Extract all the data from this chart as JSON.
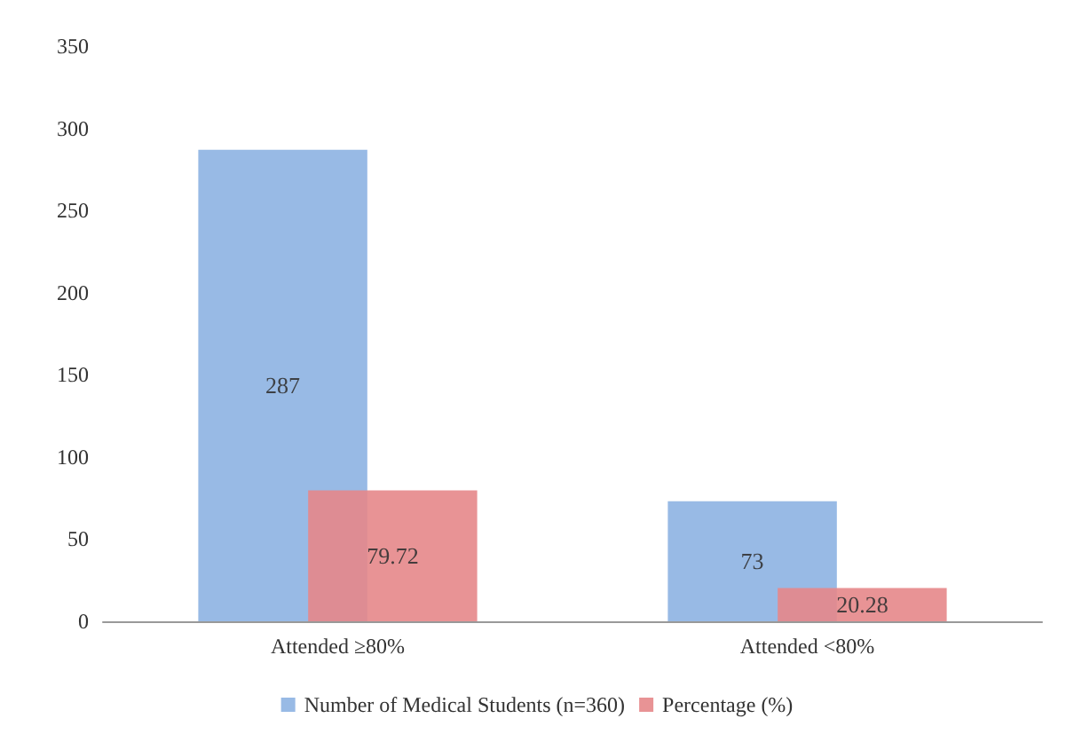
{
  "chart_data": {
    "type": "bar",
    "categories": [
      "Attended ≥80%",
      "Attended <80%"
    ],
    "series": [
      {
        "name": "Number of Medical Students (n=360)",
        "color": "#8db3e2",
        "values": [
          287,
          73
        ]
      },
      {
        "name": "Percentage (%)",
        "color": "#e6878a",
        "values": [
          79.72,
          20.28
        ]
      }
    ],
    "ylim": [
      0,
      350
    ],
    "yticks": [
      0,
      50,
      100,
      150,
      200,
      250,
      300,
      350
    ],
    "grid": false,
    "legend": "bottom",
    "data_labels": true
  }
}
